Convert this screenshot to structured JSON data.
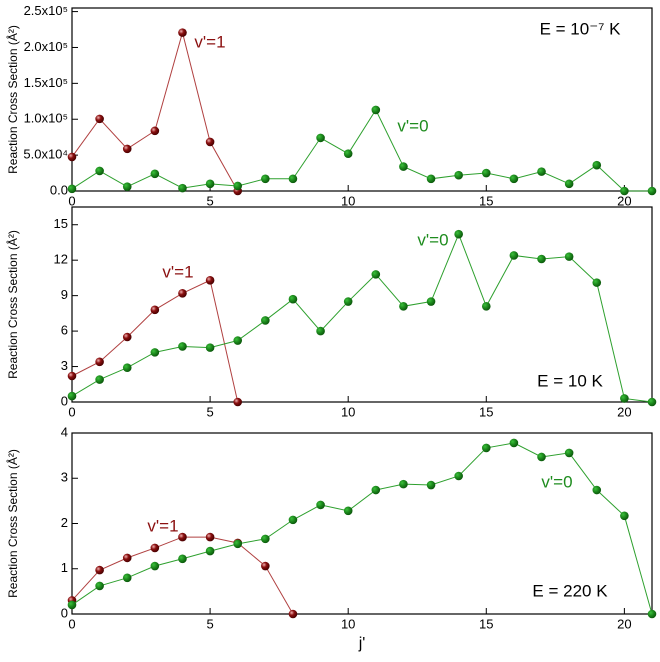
{
  "chart_data": [
    {
      "type": "line",
      "annotation": "E = 10⁻⁷ K",
      "ylabel": "Reaction Cross Section (Å²)",
      "x": [
        0,
        1,
        2,
        3,
        4,
        5,
        6,
        7,
        8,
        9,
        10,
        11,
        12,
        13,
        14,
        15,
        16,
        17,
        18,
        19,
        20,
        21
      ],
      "xlim": [
        0,
        21
      ],
      "xticks": [
        0,
        5,
        10,
        15,
        20
      ],
      "ylim": [
        0,
        255000
      ],
      "yticks": [
        {
          "value": 0,
          "label": "0.0"
        },
        {
          "value": 50000,
          "label": "5.0x10⁴"
        },
        {
          "value": 100000,
          "label": "1.0x10⁵"
        },
        {
          "value": 150000,
          "label": "1.5x10⁵"
        },
        {
          "value": 200000,
          "label": "2.0x10⁵"
        },
        {
          "value": 250000,
          "label": "2.5x10⁵"
        }
      ],
      "series": [
        {
          "name": "v'=1",
          "color": "#8b1010",
          "values": [
            47500,
            100500,
            58700,
            83800,
            220700,
            68400,
            0,
            null,
            null,
            null,
            null,
            null,
            null,
            null,
            null,
            null,
            null,
            null,
            null,
            null,
            null,
            null
          ]
        },
        {
          "name": "v'=0",
          "color": "#1e8c1e",
          "values": [
            3000,
            28000,
            6000,
            24000,
            4000,
            10000,
            7000,
            17000,
            17000,
            74000,
            52000,
            113000,
            34000,
            17000,
            22000,
            25000,
            17000,
            27000,
            10000,
            36000,
            0,
            0
          ]
        }
      ]
    },
    {
      "type": "line",
      "annotation": "E = 10 K",
      "ylabel": "Reaction Cross Section (Å²)",
      "x": [
        0,
        1,
        2,
        3,
        4,
        5,
        6,
        7,
        8,
        9,
        10,
        11,
        12,
        13,
        14,
        15,
        16,
        17,
        18,
        19,
        20,
        21
      ],
      "xlim": [
        0,
        21
      ],
      "xticks": [
        0,
        5,
        10,
        15,
        20
      ],
      "ylim": [
        0,
        16.5
      ],
      "yticks": [
        0,
        3,
        6,
        9,
        12,
        15
      ],
      "series": [
        {
          "name": "v'=1",
          "color": "#8b1010",
          "values": [
            2.2,
            3.4,
            5.5,
            7.8,
            9.2,
            10.3,
            0,
            null,
            null,
            null,
            null,
            null,
            null,
            null,
            null,
            null,
            null,
            null,
            null,
            null,
            null,
            null
          ]
        },
        {
          "name": "v'=0",
          "color": "#1e8c1e",
          "values": [
            0.5,
            1.9,
            2.9,
            4.2,
            4.7,
            4.6,
            5.2,
            6.9,
            8.7,
            6.0,
            8.5,
            10.8,
            8.1,
            8.5,
            14.2,
            8.1,
            12.4,
            12.1,
            12.3,
            10.1,
            0.3,
            0
          ]
        }
      ]
    },
    {
      "type": "line",
      "annotation": "E = 220 K",
      "ylabel": "Reaction Cross Section (Å²)",
      "xlabel": "j'",
      "x": [
        0,
        1,
        2,
        3,
        4,
        5,
        6,
        7,
        8,
        9,
        10,
        11,
        12,
        13,
        14,
        15,
        16,
        17,
        18,
        19,
        20,
        21
      ],
      "xlim": [
        0,
        21
      ],
      "xticks": [
        0,
        5,
        10,
        15,
        20
      ],
      "ylim": [
        0,
        4
      ],
      "yticks": [
        0,
        1,
        2,
        3,
        4
      ],
      "series": [
        {
          "name": "v'=1",
          "color": "#8b1010",
          "values": [
            0.3,
            0.97,
            1.24,
            1.46,
            1.7,
            1.7,
            1.57,
            1.06,
            0,
            null,
            null,
            null,
            null,
            null,
            null,
            null,
            null,
            null,
            null,
            null,
            null,
            null
          ]
        },
        {
          "name": "v'=0",
          "color": "#1e8c1e",
          "values": [
            0.2,
            0.62,
            0.8,
            1.06,
            1.22,
            1.39,
            1.55,
            1.66,
            2.08,
            2.41,
            2.28,
            2.74,
            2.87,
            2.85,
            3.05,
            3.67,
            3.78,
            3.47,
            3.56,
            2.74,
            2.17,
            0
          ]
        }
      ]
    }
  ]
}
